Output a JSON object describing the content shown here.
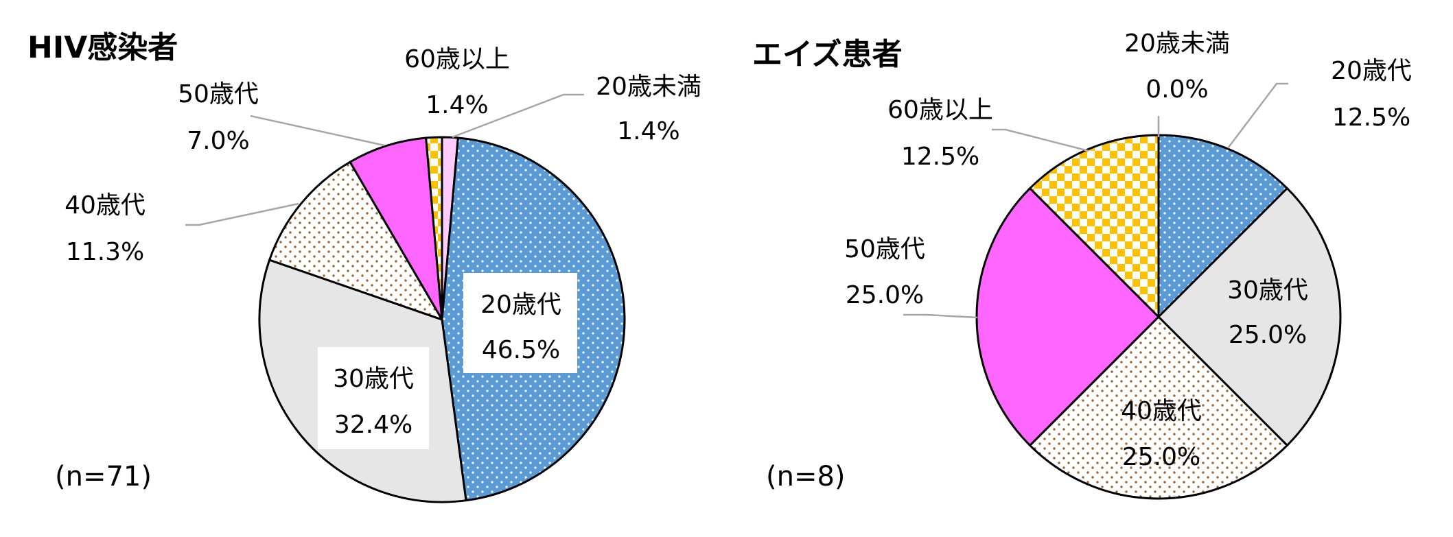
{
  "chart_data": [
    {
      "type": "pie",
      "title": "HIV感染者",
      "annotation": "(n=71)",
      "categories": [
        "20歳未満",
        "20歳代",
        "30歳代",
        "40歳代",
        "50歳代",
        "60歳以上"
      ],
      "values": [
        1.4,
        46.5,
        32.4,
        11.3,
        7.0,
        1.4
      ],
      "value_labels": [
        "1.4%",
        "46.5%",
        "32.4%",
        "11.3%",
        "7.0%",
        "1.4%"
      ],
      "colors": [
        "#ffccff",
        "#5b9bd5",
        "#e6e6e6",
        "#ffffff",
        "#ff66ff",
        "#ffc000"
      ]
    },
    {
      "type": "pie",
      "title": "エイズ患者",
      "annotation": "(n=8)",
      "categories": [
        "20歳未満",
        "20歳代",
        "30歳代",
        "40歳代",
        "50歳代",
        "60歳以上"
      ],
      "values": [
        0.0,
        12.5,
        25.0,
        25.0,
        25.0,
        12.5
      ],
      "value_labels": [
        "0.0%",
        "12.5%",
        "25.0%",
        "25.0%",
        "25.0%",
        "12.5%"
      ],
      "colors": [
        "#ffccff",
        "#5b9bd5",
        "#e6e6e6",
        "#ffffff",
        "#ff66ff",
        "#ffc000"
      ]
    }
  ]
}
